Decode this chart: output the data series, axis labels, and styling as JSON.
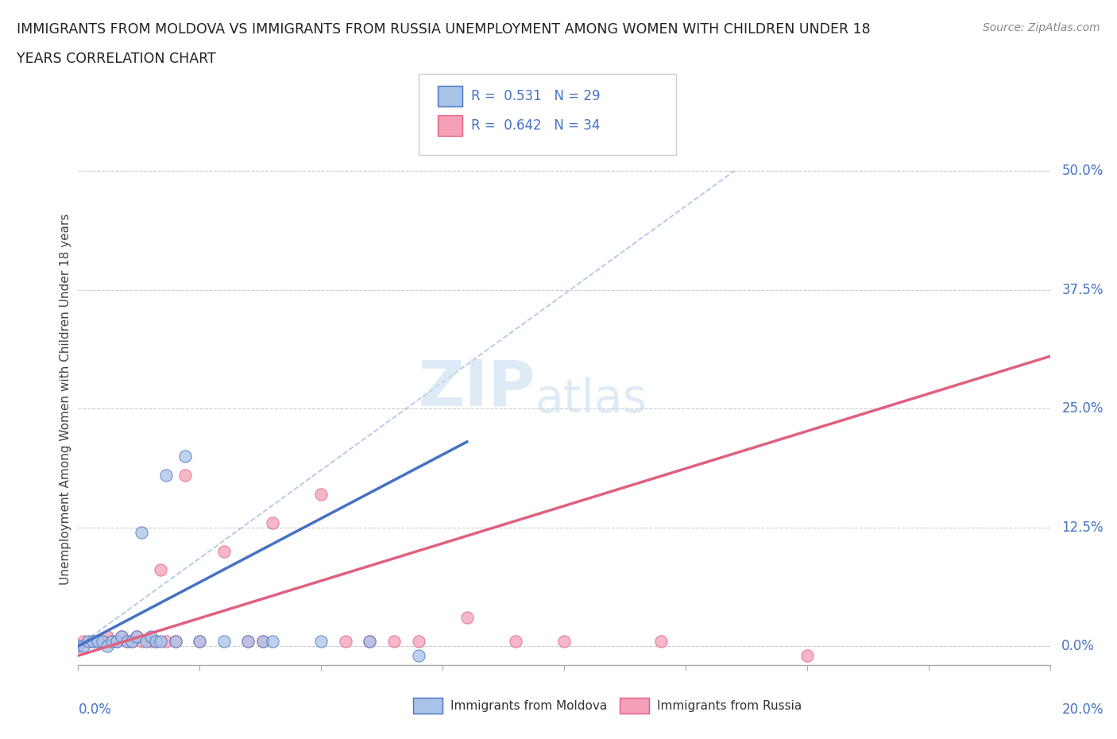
{
  "title_line1": "IMMIGRANTS FROM MOLDOVA VS IMMIGRANTS FROM RUSSIA UNEMPLOYMENT AMONG WOMEN WITH CHILDREN UNDER 18",
  "title_line2": "YEARS CORRELATION CHART",
  "source": "Source: ZipAtlas.com",
  "ylabel": "Unemployment Among Women with Children Under 18 years",
  "ytick_labels": [
    "0.0%",
    "12.5%",
    "25.0%",
    "37.5%",
    "50.0%"
  ],
  "ytick_values": [
    0.0,
    0.125,
    0.25,
    0.375,
    0.5
  ],
  "xlim": [
    0.0,
    0.2
  ],
  "ylim": [
    -0.02,
    0.54
  ],
  "moldova_color": "#aac4e8",
  "russia_color": "#f4a0b8",
  "moldova_line_color": "#4472c4",
  "russia_line_color": "#e06080",
  "diagonal_color": "#b0c8e8",
  "legend_R_moldova": "0.531",
  "legend_N_moldova": "29",
  "legend_R_russia": "0.642",
  "legend_N_russia": "34",
  "moldova_scatter_x": [
    0.0,
    0.001,
    0.002,
    0.003,
    0.004,
    0.005,
    0.006,
    0.007,
    0.008,
    0.009,
    0.01,
    0.011,
    0.012,
    0.013,
    0.014,
    0.015,
    0.016,
    0.017,
    0.018,
    0.02,
    0.022,
    0.025,
    0.03,
    0.035,
    0.038,
    0.04,
    0.05,
    0.06,
    0.07
  ],
  "moldova_scatter_y": [
    0.0,
    0.0,
    0.005,
    0.005,
    0.005,
    0.005,
    0.0,
    0.005,
    0.005,
    0.01,
    0.005,
    0.005,
    0.01,
    0.12,
    0.005,
    0.01,
    0.005,
    0.005,
    0.18,
    0.005,
    0.2,
    0.005,
    0.005,
    0.005,
    0.005,
    0.005,
    0.005,
    0.005,
    -0.01
  ],
  "russia_scatter_x": [
    0.0,
    0.001,
    0.003,
    0.004,
    0.005,
    0.006,
    0.007,
    0.008,
    0.009,
    0.01,
    0.011,
    0.012,
    0.013,
    0.015,
    0.016,
    0.017,
    0.018,
    0.02,
    0.022,
    0.025,
    0.03,
    0.035,
    0.038,
    0.04,
    0.05,
    0.055,
    0.06,
    0.065,
    0.07,
    0.08,
    0.09,
    0.1,
    0.12,
    0.15
  ],
  "russia_scatter_y": [
    0.0,
    0.005,
    0.005,
    0.005,
    0.005,
    0.01,
    0.005,
    0.005,
    0.01,
    0.005,
    0.005,
    0.01,
    0.005,
    0.005,
    0.005,
    0.08,
    0.005,
    0.005,
    0.18,
    0.005,
    0.1,
    0.005,
    0.005,
    0.13,
    0.16,
    0.005,
    0.005,
    0.005,
    0.005,
    0.03,
    0.005,
    0.005,
    0.005,
    -0.01
  ],
  "moldova_trend": [
    0.0,
    0.08,
    0.0,
    0.215
  ],
  "russia_trend_x": [
    0.0,
    0.2
  ],
  "russia_trend_y": [
    -0.01,
    0.305
  ],
  "watermark_zip": "ZIP",
  "watermark_atlas": "atlas",
  "background_color": "#ffffff",
  "grid_color": "#cccccc",
  "tick_color": "#4472c4"
}
